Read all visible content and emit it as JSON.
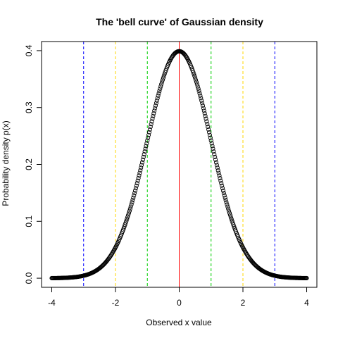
{
  "chart_data": {
    "type": "scatter",
    "title": "The 'bell curve' of Gaussian density",
    "xlabel": "Observed x value",
    "ylabel": "Probability density p(x)",
    "xlim": [
      -4.32,
      4.32
    ],
    "ylim": [
      -0.016,
      0.416
    ],
    "xticks": [
      -4,
      -2,
      0,
      2,
      4
    ],
    "yticks": [
      0.0,
      0.1,
      0.2,
      0.3,
      0.4
    ],
    "xtick_labels": [
      "-4",
      "-2",
      "0",
      "2",
      "4"
    ],
    "ytick_labels": [
      "0.0",
      "0.1",
      "0.2",
      "0.3",
      "0.4"
    ],
    "grid": false,
    "legend": false,
    "series": [
      {
        "marker": "open-circle",
        "color": "#000000",
        "function": "standard-normal-density",
        "x_range": [
          -4,
          4
        ],
        "point_count": 401
      }
    ],
    "vertical_lines": [
      {
        "x": 0,
        "color": "#ff0000",
        "style": "solid"
      },
      {
        "x": -1,
        "color": "#00cd00",
        "style": "dashed"
      },
      {
        "x": 1,
        "color": "#00cd00",
        "style": "dashed"
      },
      {
        "x": -2,
        "color": "#ffd700",
        "style": "dashed"
      },
      {
        "x": 2,
        "color": "#ffd700",
        "style": "dashed"
      },
      {
        "x": -3,
        "color": "#0000ff",
        "style": "dashed"
      },
      {
        "x": 3,
        "color": "#0000ff",
        "style": "dashed"
      }
    ]
  }
}
